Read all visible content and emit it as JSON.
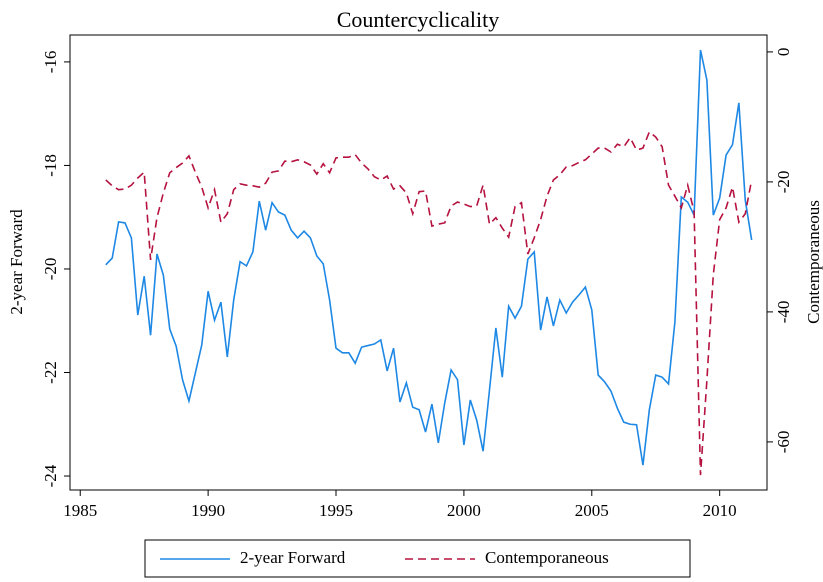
{
  "chart_data": {
    "type": "line",
    "title": "Countercyclicality",
    "y_label": "2-year Forward",
    "y2_label": "Contemporaneous",
    "x": [
      1986.0,
      1986.25,
      1986.5,
      1986.75,
      1987.0,
      1987.25,
      1987.5,
      1987.75,
      1988.0,
      1988.25,
      1988.5,
      1988.75,
      1989.0,
      1989.25,
      1989.5,
      1989.75,
      1990.0,
      1990.25,
      1990.5,
      1990.75,
      1991.0,
      1991.25,
      1991.5,
      1991.75,
      1992.0,
      1992.25,
      1992.5,
      1992.75,
      1993.0,
      1993.25,
      1993.5,
      1993.75,
      1994.0,
      1994.25,
      1994.5,
      1994.75,
      1995.0,
      1995.25,
      1995.5,
      1995.75,
      1996.0,
      1996.25,
      1996.5,
      1996.75,
      1997.0,
      1997.25,
      1997.5,
      1997.75,
      1998.0,
      1998.25,
      1998.5,
      1998.75,
      1999.0,
      1999.25,
      1999.5,
      1999.75,
      2000.0,
      2000.25,
      2000.5,
      2000.75,
      2001.0,
      2001.25,
      2001.5,
      2001.75,
      2002.0,
      2002.25,
      2002.5,
      2002.75,
      2003.0,
      2003.25,
      2003.5,
      2003.75,
      2004.0,
      2004.25,
      2004.5,
      2004.75,
      2005.0,
      2005.25,
      2005.5,
      2005.75,
      2006.0,
      2006.25,
      2006.5,
      2006.75,
      2007.0,
      2007.25,
      2007.5,
      2007.75,
      2008.0,
      2008.25,
      2008.5,
      2008.75,
      2009.0,
      2009.25,
      2009.5,
      2009.75,
      2010.0,
      2010.25,
      2010.5,
      2010.75,
      2011.0,
      2011.25
    ],
    "series": [
      {
        "name": "2-year Forward",
        "color": "#1e88e5",
        "line_style": "solid",
        "values": [
          -19.92,
          -19.79,
          -19.09,
          -19.11,
          -19.4,
          -20.89,
          -20.14,
          -21.28,
          -19.71,
          -20.12,
          -21.16,
          -21.49,
          -22.14,
          -22.55,
          -22.01,
          -21.47,
          -20.43,
          -20.99,
          -20.64,
          -21.7,
          -20.6,
          -19.86,
          -19.94,
          -19.67,
          -18.69,
          -19.25,
          -18.72,
          -18.9,
          -18.96,
          -19.25,
          -19.4,
          -19.27,
          -19.4,
          -19.75,
          -19.9,
          -20.6,
          -21.53,
          -21.62,
          -21.62,
          -21.82,
          -21.51,
          -21.48,
          -21.45,
          -21.37,
          -21.97,
          -21.53,
          -22.57,
          -22.2,
          -22.67,
          -22.72,
          -23.15,
          -22.61,
          -23.36,
          -22.59,
          -21.95,
          -22.14,
          -23.4,
          -22.53,
          -22.92,
          -23.52,
          -22.34,
          -21.14,
          -22.09,
          -20.72,
          -20.95,
          -20.72,
          -19.81,
          -19.67,
          -21.18,
          -20.54,
          -21.1,
          -20.6,
          -20.85,
          -20.64,
          -20.5,
          -20.35,
          -20.79,
          -22.05,
          -22.18,
          -22.36,
          -22.69,
          -22.96,
          -23.0,
          -23.01,
          -23.79,
          -22.72,
          -22.05,
          -22.09,
          -22.22,
          -21.02,
          -18.61,
          -18.71,
          -18.96,
          -15.77,
          -16.35,
          -18.96,
          -18.63,
          -17.8,
          -17.6,
          -16.79,
          -18.67,
          -19.44
        ]
      },
      {
        "name": "Contemporaneous",
        "color": "#b5123f",
        "line_style": "dashed",
        "axis": "y2",
        "values": [
          -19.7,
          -20.6,
          -21.2,
          -21.1,
          -20.5,
          -19.4,
          -18.5,
          -32.0,
          -25.5,
          -21.7,
          -18.6,
          -17.8,
          -17.1,
          -16.0,
          -18.5,
          -20.8,
          -24.0,
          -21.2,
          -26.2,
          -24.9,
          -21.2,
          -20.3,
          -20.5,
          -20.6,
          -20.8,
          -20.2,
          -18.5,
          -18.3,
          -16.8,
          -16.9,
          -16.6,
          -16.9,
          -17.4,
          -18.8,
          -17.2,
          -18.6,
          -16.3,
          -16.2,
          -16.2,
          -15.8,
          -17.1,
          -18.0,
          -19.2,
          -19.7,
          -19.1,
          -21.1,
          -20.6,
          -21.7,
          -24.9,
          -21.5,
          -21.4,
          -26.8,
          -26.5,
          -26.3,
          -23.7,
          -23.1,
          -23.4,
          -23.8,
          -23.7,
          -20.5,
          -26.5,
          -25.5,
          -27.1,
          -28.5,
          -23.8,
          -23.2,
          -31.1,
          -28.6,
          -25.8,
          -22.2,
          -19.7,
          -18.9,
          -17.7,
          -17.5,
          -17.0,
          -16.6,
          -15.7,
          -14.8,
          -14.8,
          -15.4,
          -14.2,
          -14.6,
          -13.2,
          -15.1,
          -14.8,
          -12.3,
          -13.1,
          -14.6,
          -20.5,
          -22.2,
          -24.0,
          -20.5,
          -24.6,
          -65.1,
          -50.5,
          -34.3,
          -25.8,
          -24.0,
          -20.8,
          -26.2,
          -24.9,
          -19.7
        ]
      }
    ],
    "xlim": [
      1984.6,
      2011.85
    ],
    "xticks": [
      1985,
      1990,
      1995,
      2000,
      2005,
      2010
    ],
    "ylim": [
      -24.27,
      -15.48
    ],
    "yticks": [
      -24,
      -22,
      -20,
      -18,
      -16
    ],
    "y2lim": [
      -67.4,
      2.6
    ],
    "y2ticks": [
      -60,
      -40,
      -20,
      0
    ],
    "grid": false,
    "legend": "bottom"
  }
}
